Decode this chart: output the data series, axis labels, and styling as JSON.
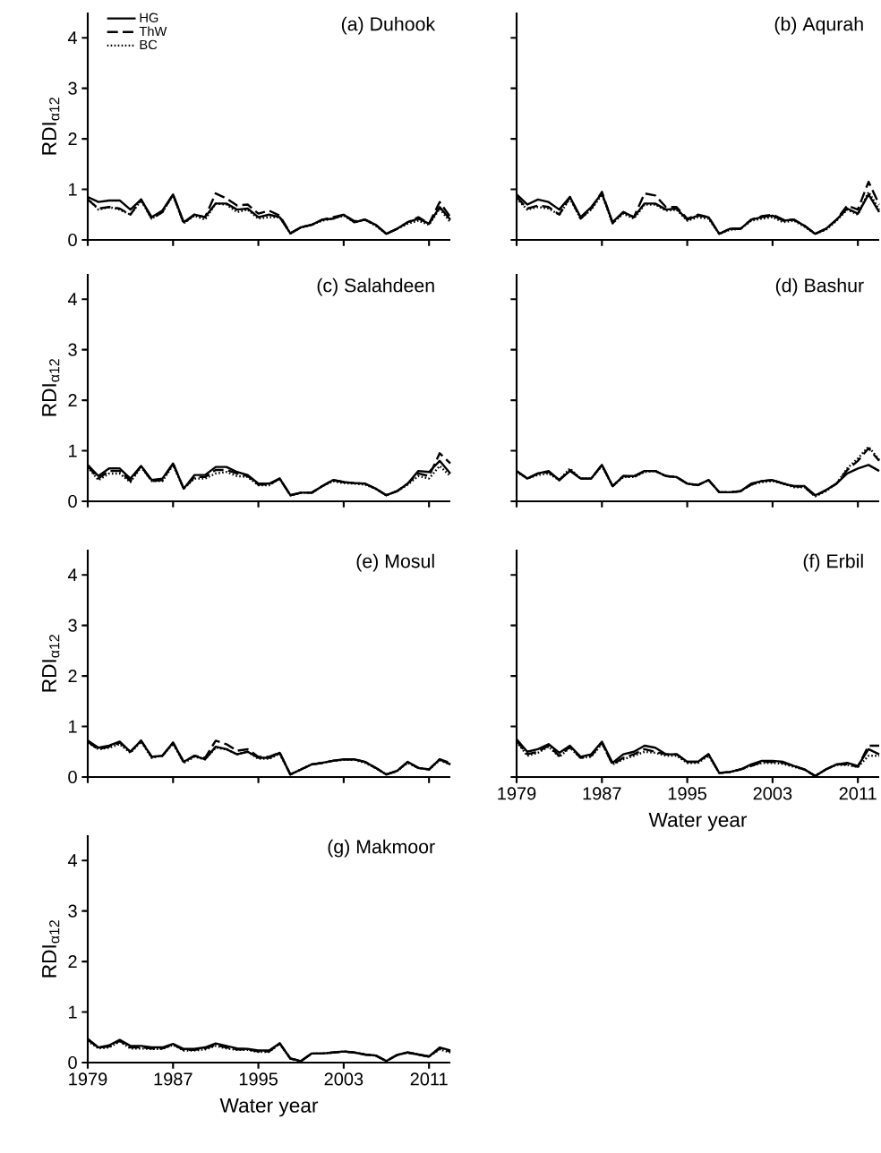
{
  "chart_data": [
    {
      "type": "line",
      "title": "(a) Duhook",
      "ylabel": "RDI$_{α12}$",
      "tick_labels": "y",
      "legend": "top left",
      "x": [
        1979,
        1980,
        1981,
        1982,
        1983,
        1984,
        1985,
        1986,
        1987,
        1988,
        1989,
        1990,
        1991,
        1992,
        1993,
        1994,
        1995,
        1996,
        1997,
        1998,
        1999,
        2000,
        2001,
        2002,
        2003,
        2004,
        2005,
        2006,
        2007,
        2008,
        2009,
        2010,
        2011,
        2012,
        2013
      ],
      "xlim": [
        1979,
        2013
      ],
      "xticks": [
        1979,
        1987,
        1995,
        2003,
        2011
      ],
      "ylim": [
        0,
        4.5
      ],
      "yticks": [
        0,
        1,
        2,
        3,
        4
      ],
      "series": [
        {
          "name": "HG",
          "color": "#000000",
          "line_style": "solid",
          "values": [
            0.85,
            0.75,
            0.78,
            0.78,
            0.6,
            0.8,
            0.45,
            0.58,
            0.9,
            0.35,
            0.5,
            0.45,
            0.72,
            0.72,
            0.6,
            0.62,
            0.45,
            0.5,
            0.45,
            0.13,
            0.25,
            0.3,
            0.4,
            0.42,
            0.5,
            0.35,
            0.4,
            0.3,
            0.12,
            0.22,
            0.35,
            0.42,
            0.32,
            0.65,
            0.4
          ]
        },
        {
          "name": "ThW",
          "color": "#000000",
          "line_style": "dashed",
          "values": [
            0.8,
            0.62,
            0.65,
            0.62,
            0.5,
            0.8,
            0.42,
            0.55,
            0.9,
            0.33,
            0.5,
            0.45,
            0.92,
            0.82,
            0.68,
            0.7,
            0.52,
            0.58,
            0.48,
            0.13,
            0.25,
            0.3,
            0.4,
            0.45,
            0.5,
            0.37,
            0.4,
            0.3,
            0.12,
            0.22,
            0.35,
            0.45,
            0.32,
            0.75,
            0.45
          ]
        },
        {
          "name": "BC",
          "color": "#000000",
          "line_style": "dotted",
          "values": [
            0.82,
            0.6,
            0.65,
            0.6,
            0.5,
            0.78,
            0.42,
            0.55,
            0.88,
            0.33,
            0.48,
            0.4,
            0.72,
            0.7,
            0.55,
            0.6,
            0.42,
            0.45,
            0.45,
            0.13,
            0.25,
            0.3,
            0.38,
            0.42,
            0.48,
            0.35,
            0.4,
            0.28,
            0.12,
            0.22,
            0.32,
            0.38,
            0.3,
            0.62,
            0.35
          ]
        }
      ]
    },
    {
      "type": "line",
      "title": "(b) Aqurah",
      "tick_labels": false,
      "x": [
        1979,
        1980,
        1981,
        1982,
        1983,
        1984,
        1985,
        1986,
        1987,
        1988,
        1989,
        1990,
        1991,
        1992,
        1993,
        1994,
        1995,
        1996,
        1997,
        1998,
        1999,
        2000,
        2001,
        2002,
        2003,
        2004,
        2005,
        2006,
        2007,
        2008,
        2009,
        2010,
        2011,
        2012,
        2013
      ],
      "xlim": [
        1979,
        2013
      ],
      "xticks": [
        1979,
        1987,
        1995,
        2003,
        2011
      ],
      "ylim": [
        0,
        4.5
      ],
      "yticks": [
        0,
        1,
        2,
        3,
        4
      ],
      "series": [
        {
          "color": "#000000",
          "line_style": "solid",
          "values": [
            0.9,
            0.7,
            0.8,
            0.75,
            0.6,
            0.85,
            0.45,
            0.65,
            0.92,
            0.35,
            0.55,
            0.45,
            0.72,
            0.72,
            0.6,
            0.62,
            0.4,
            0.48,
            0.45,
            0.12,
            0.22,
            0.22,
            0.4,
            0.45,
            0.48,
            0.38,
            0.4,
            0.28,
            0.12,
            0.22,
            0.4,
            0.62,
            0.52,
            0.9,
            0.55
          ]
        },
        {
          "color": "#000000",
          "line_style": "dashed",
          "values": [
            0.85,
            0.62,
            0.68,
            0.65,
            0.5,
            0.85,
            0.42,
            0.62,
            0.95,
            0.33,
            0.55,
            0.45,
            0.92,
            0.88,
            0.65,
            0.65,
            0.42,
            0.5,
            0.45,
            0.12,
            0.22,
            0.22,
            0.4,
            0.47,
            0.5,
            0.4,
            0.4,
            0.28,
            0.12,
            0.22,
            0.4,
            0.68,
            0.6,
            1.15,
            0.7
          ]
        },
        {
          "color": "#000000",
          "line_style": "dotted",
          "values": [
            0.82,
            0.6,
            0.65,
            0.62,
            0.5,
            0.82,
            0.42,
            0.6,
            0.9,
            0.33,
            0.52,
            0.42,
            0.7,
            0.7,
            0.58,
            0.6,
            0.38,
            0.45,
            0.42,
            0.12,
            0.2,
            0.22,
            0.38,
            0.42,
            0.45,
            0.35,
            0.38,
            0.26,
            0.12,
            0.2,
            0.38,
            0.6,
            0.5,
            0.95,
            0.6
          ]
        }
      ]
    },
    {
      "type": "line",
      "title": "(c) Salahdeen",
      "ylabel": "RDI$_{α12}$",
      "tick_labels": "y",
      "x": [
        1979,
        1980,
        1981,
        1982,
        1983,
        1984,
        1985,
        1986,
        1987,
        1988,
        1989,
        1990,
        1991,
        1992,
        1993,
        1994,
        1995,
        1996,
        1997,
        1998,
        1999,
        2000,
        2001,
        2002,
        2003,
        2004,
        2005,
        2006,
        2007,
        2008,
        2009,
        2010,
        2011,
        2012,
        2013
      ],
      "xlim": [
        1979,
        2013
      ],
      "xticks": [
        1979,
        1987,
        1995,
        2003,
        2011
      ],
      "ylim": [
        0,
        4.5
      ],
      "yticks": [
        0,
        1,
        2,
        3,
        4
      ],
      "series": [
        {
          "color": "#000000",
          "line_style": "solid",
          "values": [
            0.72,
            0.5,
            0.65,
            0.65,
            0.45,
            0.7,
            0.42,
            0.45,
            0.75,
            0.25,
            0.52,
            0.52,
            0.68,
            0.68,
            0.58,
            0.52,
            0.35,
            0.35,
            0.45,
            0.12,
            0.17,
            0.17,
            0.3,
            0.42,
            0.38,
            0.36,
            0.35,
            0.25,
            0.12,
            0.2,
            0.35,
            0.6,
            0.58,
            0.8,
            0.55
          ]
        },
        {
          "color": "#000000",
          "line_style": "dashed",
          "values": [
            0.7,
            0.45,
            0.6,
            0.6,
            0.4,
            0.7,
            0.4,
            0.42,
            0.75,
            0.25,
            0.48,
            0.48,
            0.62,
            0.62,
            0.55,
            0.5,
            0.33,
            0.33,
            0.45,
            0.12,
            0.17,
            0.17,
            0.3,
            0.42,
            0.38,
            0.36,
            0.35,
            0.25,
            0.12,
            0.2,
            0.35,
            0.55,
            0.5,
            0.95,
            0.75
          ]
        },
        {
          "color": "#000000",
          "line_style": "dotted",
          "values": [
            0.68,
            0.42,
            0.55,
            0.55,
            0.38,
            0.68,
            0.4,
            0.4,
            0.72,
            0.25,
            0.45,
            0.45,
            0.55,
            0.58,
            0.5,
            0.48,
            0.32,
            0.32,
            0.45,
            0.12,
            0.17,
            0.17,
            0.3,
            0.4,
            0.36,
            0.35,
            0.33,
            0.25,
            0.12,
            0.2,
            0.33,
            0.5,
            0.45,
            0.7,
            0.5
          ]
        }
      ]
    },
    {
      "type": "line",
      "title": "(d) Bashur",
      "tick_labels": false,
      "x": [
        1979,
        1980,
        1981,
        1982,
        1983,
        1984,
        1985,
        1986,
        1987,
        1988,
        1989,
        1990,
        1991,
        1992,
        1993,
        1994,
        1995,
        1996,
        1997,
        1998,
        1999,
        2000,
        2001,
        2002,
        2003,
        2004,
        2005,
        2006,
        2007,
        2008,
        2009,
        2010,
        2011,
        2012,
        2013
      ],
      "xlim": [
        1979,
        2013
      ],
      "xticks": [
        1979,
        1987,
        1995,
        2003,
        2011
      ],
      "ylim": [
        0,
        4.5
      ],
      "yticks": [
        0,
        1,
        2,
        3,
        4
      ],
      "series": [
        {
          "color": "#000000",
          "line_style": "solid",
          "values": [
            0.6,
            0.45,
            0.55,
            0.6,
            0.42,
            0.6,
            0.45,
            0.45,
            0.72,
            0.3,
            0.5,
            0.5,
            0.6,
            0.6,
            0.5,
            0.48,
            0.35,
            0.32,
            0.42,
            0.18,
            0.18,
            0.2,
            0.35,
            0.4,
            0.42,
            0.35,
            0.3,
            0.3,
            0.12,
            0.22,
            0.35,
            0.55,
            0.65,
            0.72,
            0.6
          ]
        },
        {
          "color": "#000000",
          "line_style": "dashed",
          "values": [
            0.6,
            0.45,
            0.55,
            0.58,
            0.42,
            0.62,
            0.45,
            0.45,
            0.72,
            0.3,
            0.5,
            0.48,
            0.6,
            0.6,
            0.5,
            0.48,
            0.35,
            0.32,
            0.42,
            0.18,
            0.18,
            0.2,
            0.33,
            0.4,
            0.42,
            0.35,
            0.3,
            0.28,
            0.1,
            0.22,
            0.35,
            0.62,
            0.8,
            1.05,
            0.8
          ]
        },
        {
          "color": "#000000",
          "line_style": "dotted",
          "values": [
            0.58,
            0.45,
            0.52,
            0.55,
            0.42,
            0.65,
            0.45,
            0.45,
            0.7,
            0.3,
            0.48,
            0.48,
            0.58,
            0.6,
            0.5,
            0.48,
            0.35,
            0.32,
            0.42,
            0.18,
            0.18,
            0.2,
            0.33,
            0.38,
            0.4,
            0.35,
            0.28,
            0.28,
            0.1,
            0.2,
            0.35,
            0.65,
            0.85,
            1.08,
            0.82
          ]
        }
      ]
    },
    {
      "type": "line",
      "title": "(e) Mosul",
      "ylabel": "RDI$_{α12}$",
      "tick_labels": "y",
      "x": [
        1979,
        1980,
        1981,
        1982,
        1983,
        1984,
        1985,
        1986,
        1987,
        1988,
        1989,
        1990,
        1991,
        1992,
        1993,
        1994,
        1995,
        1996,
        1997,
        1998,
        1999,
        2000,
        2001,
        2002,
        2003,
        2004,
        2005,
        2006,
        2007,
        2008,
        2009,
        2010,
        2011,
        2012,
        2013
      ],
      "xlim": [
        1979,
        2013
      ],
      "xticks": [
        1979,
        1987,
        1995,
        2003,
        2011
      ],
      "ylim": [
        0,
        4.5
      ],
      "yticks": [
        0,
        1,
        2,
        3,
        4
      ],
      "series": [
        {
          "color": "#000000",
          "line_style": "solid",
          "values": [
            0.72,
            0.58,
            0.62,
            0.7,
            0.5,
            0.72,
            0.4,
            0.42,
            0.68,
            0.3,
            0.42,
            0.35,
            0.6,
            0.55,
            0.45,
            0.5,
            0.38,
            0.38,
            0.48,
            0.05,
            0.15,
            0.25,
            0.28,
            0.32,
            0.35,
            0.35,
            0.3,
            0.18,
            0.05,
            0.12,
            0.3,
            0.18,
            0.15,
            0.35,
            0.25
          ]
        },
        {
          "color": "#000000",
          "line_style": "dashed",
          "values": [
            0.7,
            0.55,
            0.6,
            0.68,
            0.5,
            0.72,
            0.4,
            0.42,
            0.68,
            0.3,
            0.42,
            0.38,
            0.72,
            0.65,
            0.52,
            0.55,
            0.4,
            0.4,
            0.48,
            0.05,
            0.15,
            0.25,
            0.28,
            0.32,
            0.35,
            0.35,
            0.3,
            0.18,
            0.05,
            0.12,
            0.3,
            0.18,
            0.15,
            0.35,
            0.28
          ]
        },
        {
          "color": "#000000",
          "line_style": "dotted",
          "values": [
            0.68,
            0.55,
            0.58,
            0.65,
            0.48,
            0.7,
            0.38,
            0.42,
            0.66,
            0.28,
            0.4,
            0.35,
            0.58,
            0.55,
            0.45,
            0.5,
            0.36,
            0.36,
            0.46,
            0.05,
            0.15,
            0.25,
            0.28,
            0.32,
            0.34,
            0.34,
            0.28,
            0.18,
            0.05,
            0.12,
            0.28,
            0.18,
            0.15,
            0.33,
            0.25
          ]
        }
      ]
    },
    {
      "type": "line",
      "title": "(f) Erbil",
      "xlabel": "Water year",
      "tick_labels": "x",
      "x": [
        1979,
        1980,
        1981,
        1982,
        1983,
        1984,
        1985,
        1986,
        1987,
        1988,
        1989,
        1990,
        1991,
        1992,
        1993,
        1994,
        1995,
        1996,
        1997,
        1998,
        1999,
        2000,
        2001,
        2002,
        2003,
        2004,
        2005,
        2006,
        2007,
        2008,
        2009,
        2010,
        2011,
        2012,
        2013
      ],
      "xlim": [
        1979,
        2013
      ],
      "xticks": [
        1979,
        1987,
        1995,
        2003,
        2011
      ],
      "ylim": [
        0,
        4.5
      ],
      "yticks": [
        0,
        1,
        2,
        3,
        4
      ],
      "series": [
        {
          "color": "#000000",
          "line_style": "solid",
          "values": [
            0.75,
            0.5,
            0.55,
            0.65,
            0.48,
            0.62,
            0.4,
            0.45,
            0.7,
            0.28,
            0.45,
            0.5,
            0.62,
            0.58,
            0.45,
            0.45,
            0.3,
            0.3,
            0.45,
            0.08,
            0.1,
            0.15,
            0.25,
            0.32,
            0.32,
            0.3,
            0.22,
            0.15,
            0.02,
            0.15,
            0.25,
            0.28,
            0.22,
            0.55,
            0.45
          ]
        },
        {
          "color": "#000000",
          "line_style": "dashed",
          "values": [
            0.72,
            0.45,
            0.5,
            0.62,
            0.42,
            0.6,
            0.38,
            0.42,
            0.68,
            0.25,
            0.38,
            0.45,
            0.55,
            0.5,
            0.45,
            0.45,
            0.3,
            0.3,
            0.45,
            0.08,
            0.1,
            0.15,
            0.22,
            0.3,
            0.3,
            0.28,
            0.22,
            0.15,
            0.02,
            0.15,
            0.25,
            0.25,
            0.2,
            0.62,
            0.62
          ]
        },
        {
          "color": "#000000",
          "line_style": "dotted",
          "values": [
            0.7,
            0.42,
            0.48,
            0.6,
            0.4,
            0.58,
            0.38,
            0.4,
            0.66,
            0.25,
            0.35,
            0.42,
            0.5,
            0.48,
            0.42,
            0.42,
            0.28,
            0.28,
            0.42,
            0.08,
            0.1,
            0.15,
            0.22,
            0.28,
            0.28,
            0.26,
            0.2,
            0.15,
            0.02,
            0.15,
            0.24,
            0.24,
            0.2,
            0.42,
            0.42
          ]
        }
      ]
    },
    {
      "type": "line",
      "title": "(g) Makmoor",
      "ylabel": "RDI$_{α12}$",
      "xlabel": "Water year",
      "x": [
        1979,
        1980,
        1981,
        1982,
        1983,
        1984,
        1985,
        1986,
        1987,
        1988,
        1989,
        1990,
        1991,
        1992,
        1993,
        1994,
        1995,
        1996,
        1997,
        1998,
        1999,
        2000,
        2001,
        2002,
        2003,
        2004,
        2005,
        2006,
        2007,
        2008,
        2009,
        2010,
        2011,
        2012,
        2013
      ],
      "xlim": [
        1979,
        2013
      ],
      "xticks": [
        1979,
        1987,
        1995,
        2003,
        2011
      ],
      "ylim": [
        0,
        4.5
      ],
      "yticks": [
        0,
        1,
        2,
        3,
        4
      ],
      "series": [
        {
          "color": "#000000",
          "line_style": "solid",
          "values": [
            0.47,
            0.3,
            0.34,
            0.45,
            0.33,
            0.33,
            0.3,
            0.3,
            0.37,
            0.27,
            0.27,
            0.3,
            0.38,
            0.33,
            0.28,
            0.27,
            0.24,
            0.24,
            0.38,
            0.08,
            0.03,
            0.18,
            0.18,
            0.2,
            0.22,
            0.2,
            0.16,
            0.14,
            0.03,
            0.15,
            0.2,
            0.16,
            0.12,
            0.3,
            0.24
          ]
        },
        {
          "color": "#000000",
          "line_style": "dashed",
          "values": [
            0.45,
            0.3,
            0.32,
            0.43,
            0.3,
            0.3,
            0.28,
            0.28,
            0.36,
            0.25,
            0.25,
            0.28,
            0.35,
            0.3,
            0.26,
            0.26,
            0.22,
            0.22,
            0.38,
            0.08,
            0.03,
            0.18,
            0.18,
            0.2,
            0.22,
            0.2,
            0.16,
            0.14,
            0.03,
            0.15,
            0.2,
            0.16,
            0.12,
            0.28,
            0.22
          ]
        },
        {
          "color": "#000000",
          "line_style": "dotted",
          "values": [
            0.43,
            0.28,
            0.3,
            0.42,
            0.28,
            0.28,
            0.27,
            0.27,
            0.35,
            0.24,
            0.24,
            0.26,
            0.33,
            0.28,
            0.25,
            0.25,
            0.21,
            0.21,
            0.37,
            0.08,
            0.03,
            0.18,
            0.18,
            0.2,
            0.22,
            0.2,
            0.16,
            0.14,
            0.03,
            0.15,
            0.2,
            0.16,
            0.12,
            0.26,
            0.2
          ]
        }
      ]
    }
  ]
}
